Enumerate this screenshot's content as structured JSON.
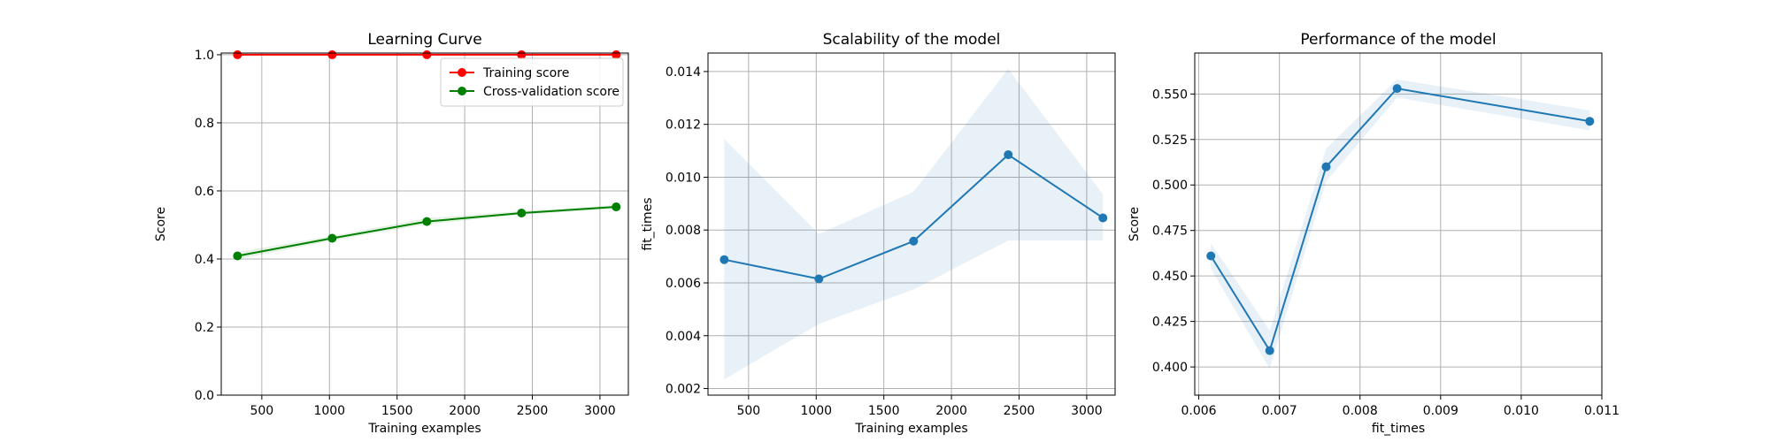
{
  "chart_data": [
    {
      "type": "line",
      "title": "Learning Curve",
      "xlabel": "Training examples",
      "ylabel": "Score",
      "xlim": [
        200,
        3210
      ],
      "ylim": [
        0.0,
        1.005
      ],
      "xticks": [
        500,
        1000,
        1500,
        2000,
        2500,
        3000
      ],
      "yticks": [
        0.0,
        0.2,
        0.4,
        0.6,
        0.8,
        1.0
      ],
      "grid": true,
      "legend_position": "top-right",
      "series": [
        {
          "name": "Training score",
          "color": "#ff0000",
          "x": [
            320,
            1020,
            1720,
            2420,
            3120
          ],
          "y": [
            1.0,
            1.0,
            1.0,
            1.0,
            1.0
          ],
          "band_lower": [
            1.0,
            1.0,
            1.0,
            1.0,
            1.0
          ],
          "band_upper": [
            1.0,
            1.0,
            1.0,
            1.0,
            1.0
          ]
        },
        {
          "name": "Cross-validation score",
          "color": "#008000",
          "x": [
            320,
            1020,
            1720,
            2420,
            3120
          ],
          "y": [
            0.409,
            0.461,
            0.51,
            0.535,
            0.553
          ],
          "band_lower": [
            0.399,
            0.454,
            0.502,
            0.53,
            0.548
          ],
          "band_upper": [
            0.42,
            0.468,
            0.52,
            0.541,
            0.558
          ]
        }
      ]
    },
    {
      "type": "line",
      "title": "Scalability of the model",
      "xlabel": "Training examples",
      "ylabel": "fit_times",
      "xlim": [
        200,
        3210
      ],
      "ylim": [
        0.00175,
        0.0147
      ],
      "xticks": [
        500,
        1000,
        1500,
        2000,
        2500,
        3000
      ],
      "yticks": [
        0.002,
        0.004,
        0.006,
        0.008,
        0.01,
        0.012,
        0.014
      ],
      "ytick_labels": [
        "0.002",
        "0.004",
        "0.006",
        "0.008",
        "0.010",
        "0.012",
        "0.014"
      ],
      "grid": true,
      "series": [
        {
          "color": "#1f77b4",
          "x": [
            320,
            1020,
            1720,
            2420,
            3120
          ],
          "y": [
            0.00688,
            0.00615,
            0.00758,
            0.01085,
            0.00846
          ],
          "band_lower": [
            0.00235,
            0.00445,
            0.00575,
            0.0076,
            0.0076
          ],
          "band_upper": [
            0.01145,
            0.00785,
            0.00945,
            0.0141,
            0.00935
          ]
        }
      ]
    },
    {
      "type": "line",
      "title": "Performance of the model",
      "xlabel": "fit_times",
      "ylabel": "Score",
      "xlim": [
        0.00595,
        0.011
      ],
      "ylim": [
        0.3845,
        0.5725
      ],
      "xticks": [
        0.006,
        0.007,
        0.008,
        0.009,
        0.01,
        0.011
      ],
      "xtick_labels": [
        "0.006",
        "0.007",
        "0.008",
        "0.009",
        "0.010",
        "0.011"
      ],
      "yticks": [
        0.4,
        0.425,
        0.45,
        0.475,
        0.5,
        0.525,
        0.55
      ],
      "ytick_labels": [
        "0.400",
        "0.425",
        "0.450",
        "0.475",
        "0.500",
        "0.525",
        "0.550"
      ],
      "grid": true,
      "series": [
        {
          "color": "#1f77b4",
          "x": [
            0.00615,
            0.00688,
            0.00758,
            0.00846,
            0.01085
          ],
          "y": [
            0.461,
            0.409,
            0.51,
            0.553,
            0.535
          ],
          "band_lower": [
            0.454,
            0.399,
            0.502,
            0.548,
            0.53
          ],
          "band_upper": [
            0.468,
            0.42,
            0.52,
            0.558,
            0.541
          ]
        }
      ]
    }
  ]
}
